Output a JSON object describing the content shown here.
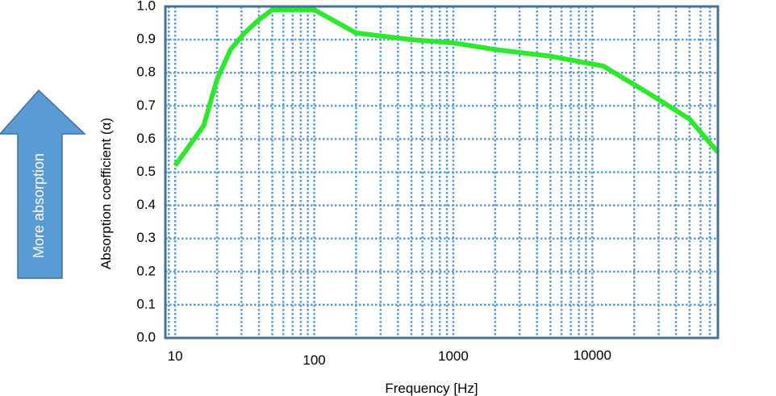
{
  "chart_data": {
    "type": "line",
    "xscale": "log",
    "xlabel": "Frequency [Hz]",
    "ylabel": "Absorption coefficient (α)",
    "xlim": [
      8.5,
      80000
    ],
    "ylim": [
      0.0,
      1.0
    ],
    "x_ticks": [
      10,
      100,
      1000,
      10000
    ],
    "x_tick_labels": [
      "10",
      "100",
      "1000",
      "10000"
    ],
    "y_ticks": [
      0.0,
      0.1,
      0.2,
      0.3,
      0.4,
      0.5,
      0.6,
      0.7,
      0.8,
      0.9,
      1.0
    ],
    "y_tick_labels": [
      "0.0",
      "0.1",
      "0.2",
      "0.3",
      "0.4",
      "0.5",
      "0.6",
      "0.7",
      "0.8",
      "0.9",
      "1.0"
    ],
    "grid": true,
    "series": [
      {
        "color": "#2ee82e",
        "x": [
          10,
          16,
          20,
          25,
          31.5,
          40,
          50,
          63,
          80,
          100,
          200,
          500,
          1000,
          2000,
          5000,
          12000,
          25000,
          50000,
          80000
        ],
        "y": [
          0.52,
          0.64,
          0.78,
          0.87,
          0.92,
          0.96,
          0.99,
          0.99,
          0.99,
          0.99,
          0.92,
          0.9,
          0.89,
          0.87,
          0.85,
          0.82,
          0.74,
          0.66,
          0.56
        ]
      }
    ]
  },
  "annotation": {
    "arrow_label": "More absorption",
    "arrow_color": "#5b9bd5"
  },
  "colors": {
    "plot_border": "#41719c",
    "grid": "#5b9bd5"
  }
}
